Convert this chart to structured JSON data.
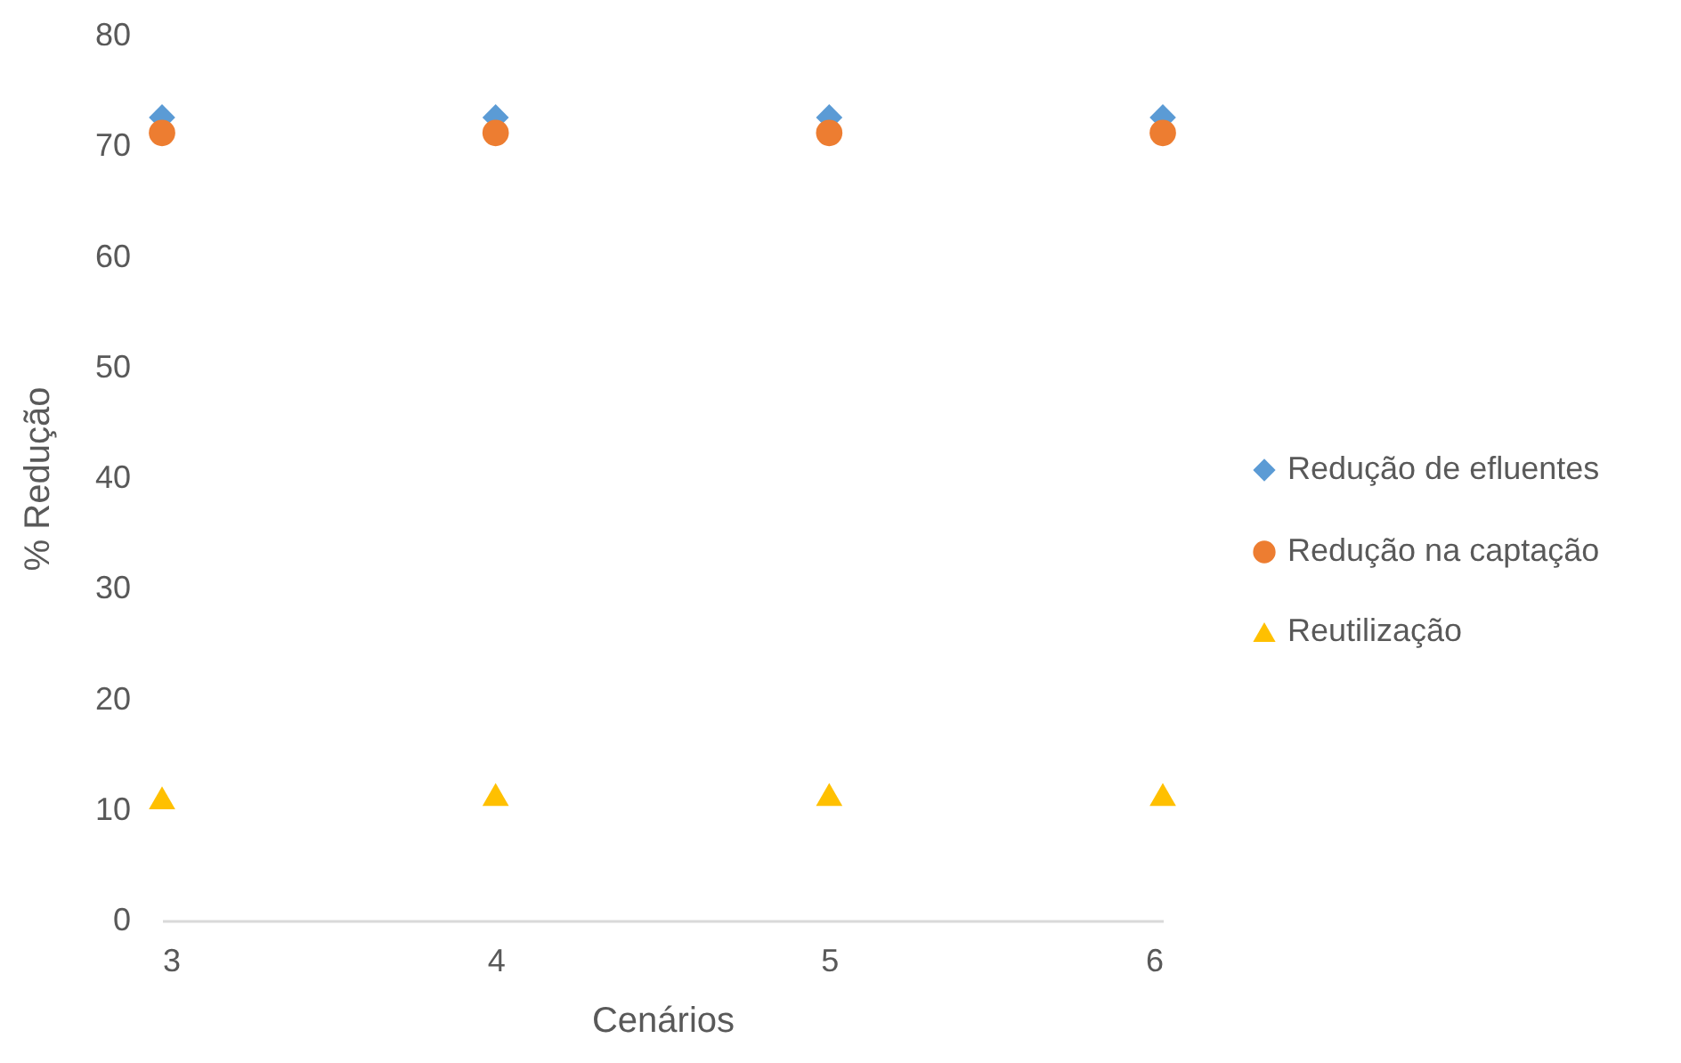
{
  "chart_data": {
    "type": "scatter",
    "xlabel": "Cenários",
    "ylabel": "% Redução",
    "categories": [
      "3",
      "4",
      "5",
      "6"
    ],
    "ylim": [
      0,
      80
    ],
    "yticks": [
      0,
      10,
      20,
      30,
      40,
      50,
      60,
      70,
      80
    ],
    "grid": false,
    "legend": "right",
    "series": [
      {
        "name": "Redução de efluentes",
        "color": "#5b9bd5",
        "marker": "diamond",
        "values": [
          72.6,
          72.6,
          72.6,
          72.6
        ]
      },
      {
        "name": "Redução na captação",
        "color": "#ed7d31",
        "marker": "circle",
        "values": [
          71.2,
          71.2,
          71.2,
          71.2
        ]
      },
      {
        "name": "Reutilização",
        "color": "#ffc000",
        "marker": "triangle",
        "values": [
          11.1,
          11.4,
          11.4,
          11.4
        ]
      }
    ]
  }
}
